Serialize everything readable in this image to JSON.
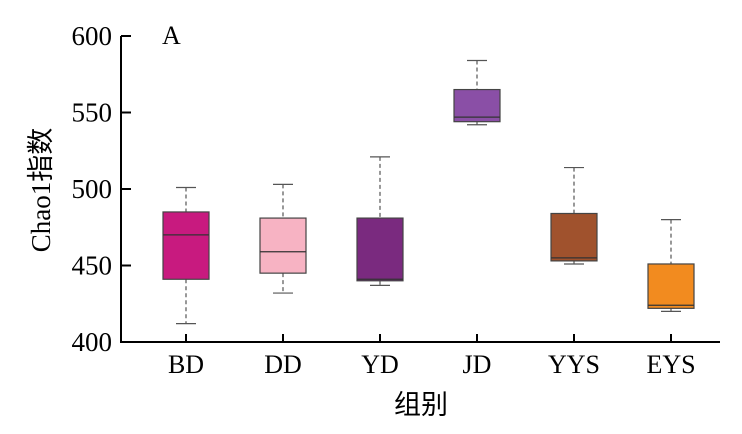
{
  "chart_data": {
    "type": "box",
    "panel_label": "A",
    "xlabel": "组别",
    "ylabel": "Chao1指数",
    "ylim": [
      400,
      600
    ],
    "yticks": [
      400,
      450,
      500,
      550,
      600
    ],
    "ytick_labels": [
      "400",
      "450",
      "500",
      "550",
      "600"
    ],
    "categories": [
      "BD",
      "DD",
      "YD",
      "JD",
      "YYS",
      "EYS"
    ],
    "boxes": [
      {
        "name": "BD",
        "min": 412,
        "q1": 441,
        "median": 470,
        "q3": 485,
        "max": 501,
        "color": "#c81a7f"
      },
      {
        "name": "DD",
        "min": 432,
        "q1": 445,
        "median": 459,
        "q3": 481,
        "max": 503,
        "color": "#f7b3c3"
      },
      {
        "name": "YD",
        "min": 437,
        "q1": 440,
        "median": 441,
        "q3": 481,
        "max": 521,
        "color": "#7a2a7f"
      },
      {
        "name": "JD",
        "min": 542,
        "q1": 544,
        "median": 547,
        "q3": 565,
        "max": 584,
        "color": "#8a4fa6"
      },
      {
        "name": "YYS",
        "min": 451,
        "q1": 453,
        "median": 455,
        "q3": 484,
        "max": 514,
        "color": "#a0522d"
      },
      {
        "name": "EYS",
        "min": 420,
        "q1": 422,
        "median": 424,
        "q3": 451,
        "max": 480,
        "color": "#f28b1f"
      }
    ],
    "grid": false,
    "legend": "none"
  }
}
